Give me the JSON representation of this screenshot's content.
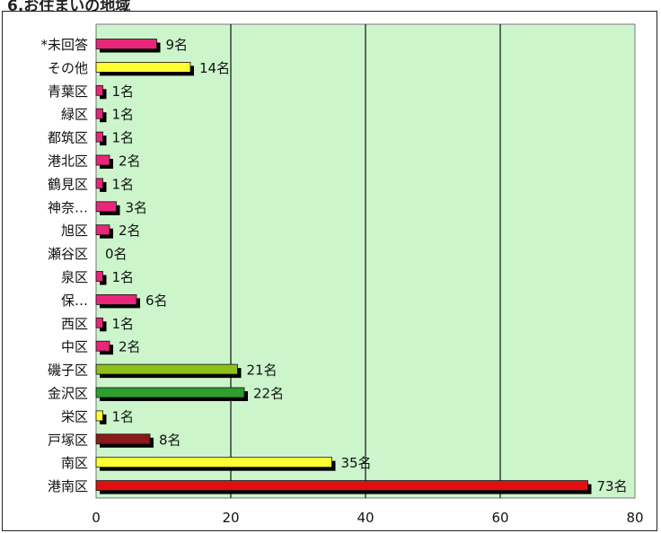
{
  "header": {
    "title": "6.お住まいの地域"
  },
  "chart_data": {
    "type": "bar",
    "orientation": "horizontal",
    "xlim": [
      0,
      80
    ],
    "x_ticks": [
      0,
      20,
      40,
      60,
      80
    ],
    "grid": true,
    "plot_background": "#ccf5cc",
    "unit_suffix": "名",
    "bars": [
      {
        "category": "*未回答",
        "value": 9,
        "label": "9名",
        "color": "#e8277a"
      },
      {
        "category": "その他",
        "value": 14,
        "label": "14名",
        "color": "#ffff33"
      },
      {
        "category": "青葉区",
        "value": 1,
        "label": "1名",
        "color": "#e8277a"
      },
      {
        "category": "緑区",
        "value": 1,
        "label": "1名",
        "color": "#e8277a"
      },
      {
        "category": "都筑区",
        "value": 1,
        "label": "1名",
        "color": "#e8277a"
      },
      {
        "category": "港北区",
        "value": 2,
        "label": "2名",
        "color": "#e8277a"
      },
      {
        "category": "鶴見区",
        "value": 1,
        "label": "1名",
        "color": "#e8277a"
      },
      {
        "category": "神奈…",
        "value": 3,
        "label": "3名",
        "color": "#e8277a"
      },
      {
        "category": "旭区",
        "value": 2,
        "label": "2名",
        "color": "#e8277a"
      },
      {
        "category": "瀬谷区",
        "value": 0,
        "label": "0名",
        "color": "#e8277a"
      },
      {
        "category": "泉区",
        "value": 1,
        "label": "1名",
        "color": "#e8277a"
      },
      {
        "category": "保…",
        "value": 6,
        "label": "6名",
        "color": "#e8277a"
      },
      {
        "category": "西区",
        "value": 1,
        "label": "1名",
        "color": "#e8277a"
      },
      {
        "category": "中区",
        "value": 2,
        "label": "2名",
        "color": "#e8277a"
      },
      {
        "category": "磯子区",
        "value": 21,
        "label": "21名",
        "color": "#8fbf1a"
      },
      {
        "category": "金沢区",
        "value": 22,
        "label": "22名",
        "color": "#2e9e2e"
      },
      {
        "category": "栄区",
        "value": 1,
        "label": "1名",
        "color": "#ffff33"
      },
      {
        "category": "戸塚区",
        "value": 8,
        "label": "8名",
        "color": "#8b1a1a"
      },
      {
        "category": "南区",
        "value": 35,
        "label": "35名",
        "color": "#ffff33"
      },
      {
        "category": "港南区",
        "value": 73,
        "label": "73名",
        "color": "#e01010"
      }
    ]
  }
}
